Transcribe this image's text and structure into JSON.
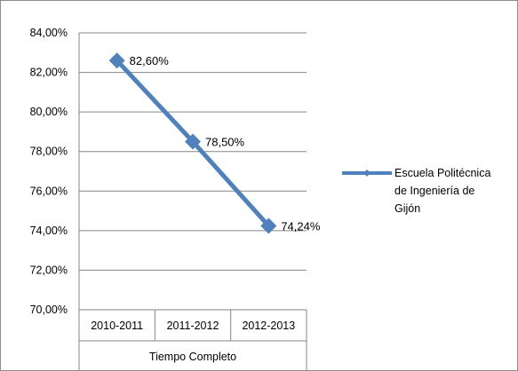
{
  "chart_data": {
    "type": "line",
    "title": "",
    "xlabel": "Tiempo Completo",
    "ylabel": "",
    "categories": [
      "2010-2011",
      "2011-2012",
      "2012-2013"
    ],
    "series": [
      {
        "name": "Escuela Politécnica de Ingeniería de Gijón",
        "legend_lines": [
          "Escuela Politécnica",
          "de Ingeniería de",
          "Gijón"
        ],
        "values": [
          82.6,
          78.5,
          74.24
        ],
        "data_labels": [
          "82,60%",
          "78,50%",
          "74,24%"
        ],
        "color": "#4f81bd",
        "marker": "diamond"
      }
    ],
    "ylim": [
      70,
      84
    ],
    "yticks": [
      70,
      72,
      74,
      76,
      78,
      80,
      82,
      84
    ],
    "ytick_labels": [
      "70,00%",
      "72,00%",
      "74,00%",
      "76,00%",
      "78,00%",
      "80,00%",
      "82,00%",
      "84,00%"
    ],
    "grid": true,
    "legend_position": "right",
    "gridline_color": "#868686",
    "axis_color": "#868686"
  }
}
